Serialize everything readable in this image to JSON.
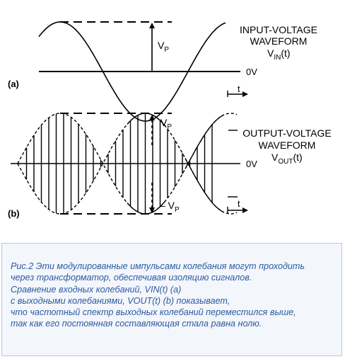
{
  "panel_a": {
    "label": "(a)",
    "title_line1": "INPUT-VOLTAGE",
    "title_line2": "WAVEFORM",
    "signal_main": "V",
    "signal_sub": "IN",
    "signal_tail": "(t)",
    "peak_main": "V",
    "peak_sub": "P",
    "zero_label": "0V",
    "time_label": "t"
  },
  "panel_b": {
    "label": "(b)",
    "title_line1": "OUTPUT-VOLTAGE",
    "title_line2": "WAVEFORM",
    "signal_main": "V",
    "signal_sub": "OUT",
    "signal_tail": "(t)",
    "peak_pos_main": "V",
    "peak_pos_sub": "P",
    "peak_neg_main": "– V",
    "peak_neg_sub": "P",
    "zero_label": "0V",
    "time_label": "t"
  },
  "caption": {
    "lines": [
      "Рис.2 Эти модулированные импульсами колебания могут проходить",
      "через трансформатор, обеспечивая изоляцию сигналов.",
      "Сравнение входных колебаний, VIN(t) (a)",
      "с выходными колебаниями, VOUT(t) (b) показывает,",
      "что частотный спектр выходных колебаний переместился выше,",
      "так как его постоянная составляющая стала равна нолю."
    ]
  }
}
